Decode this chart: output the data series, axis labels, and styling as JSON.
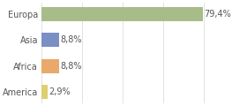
{
  "categories": [
    "America",
    "Africa",
    "Asia",
    "Europa"
  ],
  "values": [
    2.9,
    8.8,
    8.8,
    79.4
  ],
  "labels": [
    "2,9%",
    "8,8%",
    "8,8%",
    "79,4%"
  ],
  "bar_colors": [
    "#ddd06e",
    "#e8a96a",
    "#7a8fc4",
    "#a8bc8a"
  ],
  "background_color": "#ffffff",
  "xlim": [
    0,
    100
  ],
  "label_fontsize": 7.0,
  "tick_fontsize": 7.0,
  "grid_color": "#dddddd",
  "text_color": "#555555"
}
